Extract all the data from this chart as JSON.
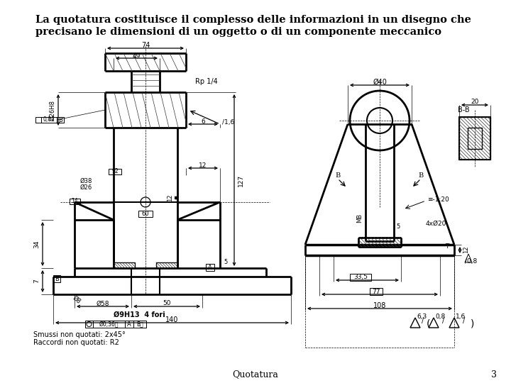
{
  "background_color": "#ffffff",
  "title_line1": "La quotatura costituisce il complesso delle informazioni in un disegno che",
  "title_line2": "precisano le dimensioni di un oggetto o di un componente meccanico",
  "title_fontsize": 10.5,
  "footer_label": "Quotatura",
  "footer_number": "3",
  "footer_fontsize": 9,
  "notes_line1": "Smussi non quotati: 2x45°",
  "notes_line2": "Raccordi non quotati: R2",
  "notes_fontsize": 7,
  "line_color": "#000000",
  "line_width": 0.9
}
